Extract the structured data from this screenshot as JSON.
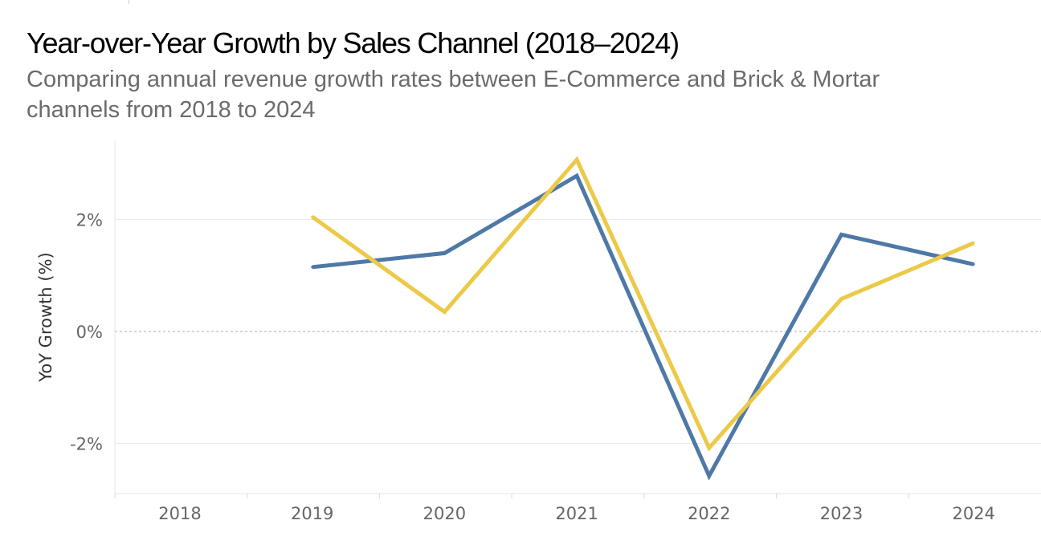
{
  "title": "Year-over-Year Growth by Sales Channel (2018–2024)",
  "subtitle": "Comparing annual revenue growth rates between E-Commerce and Brick & Mortar channels from 2018 to 2024",
  "chart_data": {
    "type": "line",
    "title": "Year-over-Year Growth by Sales Channel (2018–2024)",
    "subtitle": "Comparing annual revenue growth rates between E-Commerce and Brick & Mortar channels from 2018 to 2024",
    "xlabel": "",
    "ylabel": "YoY Growth (%)",
    "categories": [
      "2018",
      "2019",
      "2020",
      "2021",
      "2022",
      "2023",
      "2024"
    ],
    "yticks": [
      {
        "value": 2,
        "label": "2%"
      },
      {
        "value": 0,
        "label": "0%"
      },
      {
        "value": -2,
        "label": "-2%"
      }
    ],
    "ylim": [
      -2.9,
      3.4
    ],
    "grid": true,
    "legend": "none",
    "series": [
      {
        "color": "#4e79a7",
        "values": [
          null,
          1.15,
          1.4,
          2.78,
          -2.58,
          1.73,
          1.2
        ]
      },
      {
        "color": "#edc948",
        "values": [
          null,
          2.05,
          0.35,
          3.07,
          -2.08,
          0.58,
          1.58
        ]
      }
    ]
  }
}
